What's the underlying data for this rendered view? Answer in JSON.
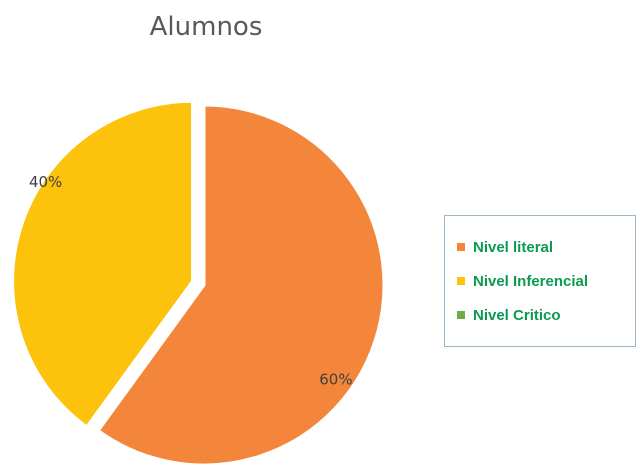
{
  "chart_data": {
    "type": "pie",
    "title": "Alumnos",
    "categories": [
      "Nivel literal",
      "Nivel Inferencial",
      "Nivel Critico"
    ],
    "values": [
      60,
      40,
      0
    ],
    "labels": [
      "60%",
      "40%",
      ""
    ],
    "colors": [
      "#f4863b",
      "#fcc20c",
      "#6fac46"
    ],
    "legend_placement": "right"
  },
  "legend": {
    "items": [
      {
        "label": "Nivel literal",
        "color": "#f4863b"
      },
      {
        "label": "Nivel Inferencial",
        "color": "#fcc20c"
      },
      {
        "label": "Nivel Critico",
        "color": "#6fac46"
      }
    ]
  }
}
